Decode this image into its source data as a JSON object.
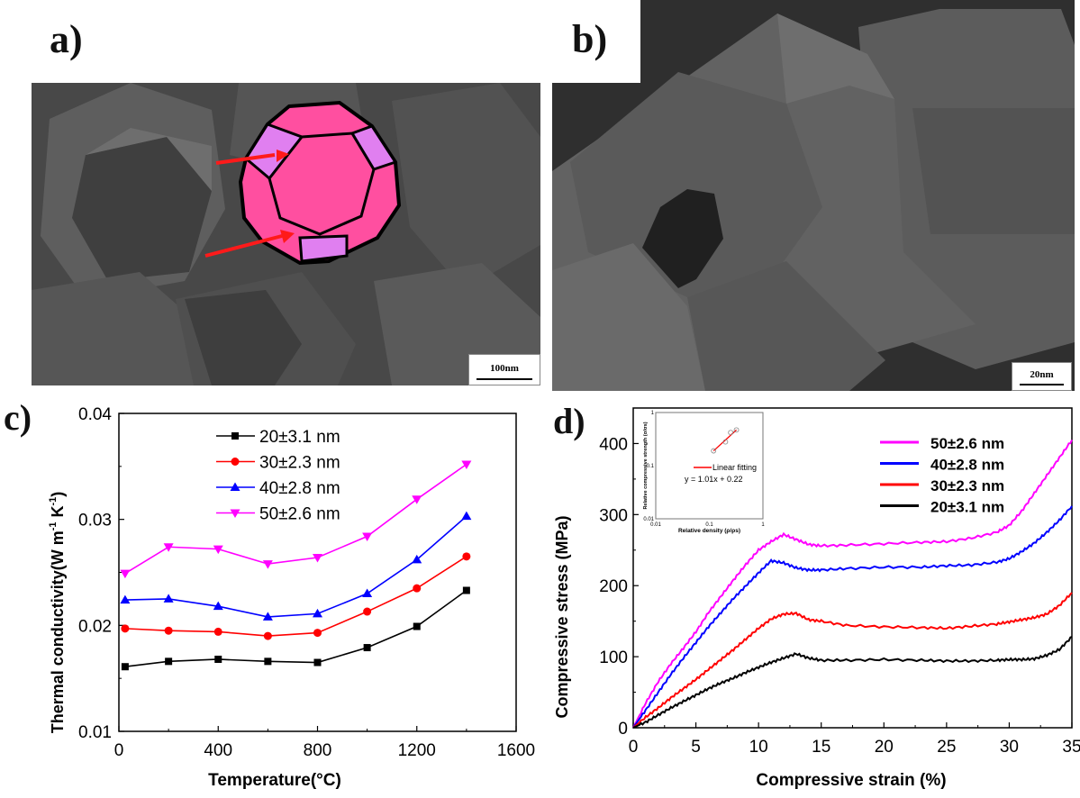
{
  "panels": {
    "a": {
      "label": "a)",
      "scale_bar": "100nm"
    },
    "b": {
      "label": "b)",
      "scale_bar": "20nm"
    },
    "c": {
      "label": "c)"
    },
    "d": {
      "label": "d)"
    }
  },
  "colors": {
    "black": "#000000",
    "red": "#ff0000",
    "blue": "#0000ff",
    "magenta": "#ff00ff",
    "sem_bg": "#4a4a4a",
    "crystal_pink": "#ff4fa0",
    "crystal_lilac": "#e07ff0"
  },
  "chart_data": [
    {
      "type": "line",
      "title": "",
      "xlabel": "Temperature(°C)",
      "ylabel": "Thermal conductivity(W m-1 K-1)",
      "ylabel_parts": {
        "main": "Thermal conductivity(W m",
        "sup1": "-1",
        "mid": " K",
        "sup2": "-1",
        "end": ")"
      },
      "xlim": [
        0,
        1600
      ],
      "ylim": [
        0.01,
        0.04
      ],
      "xticks": [
        "0",
        "400",
        "800",
        "1200",
        "1600"
      ],
      "yticks": [
        "0.01",
        "0.02",
        "0.03",
        "0.04"
      ],
      "legend_position": "top-center",
      "x": [
        25,
        200,
        400,
        600,
        800,
        1000,
        1200,
        1400
      ],
      "series": [
        {
          "name": "20±3.1 nm",
          "color": "#000000",
          "marker": "square",
          "values": [
            0.0161,
            0.0166,
            0.0168,
            0.0166,
            0.0165,
            0.0179,
            0.0199,
            0.0233
          ]
        },
        {
          "name": "30±2.3 nm",
          "color": "#ff0000",
          "marker": "circle",
          "values": [
            0.0197,
            0.0195,
            0.0194,
            0.019,
            0.0193,
            0.0213,
            0.0235,
            0.0265
          ]
        },
        {
          "name": "40±2.8 nm",
          "color": "#0000ff",
          "marker": "triangle-up",
          "values": [
            0.0224,
            0.0225,
            0.0218,
            0.0208,
            0.0211,
            0.023,
            0.0262,
            0.0303
          ]
        },
        {
          "name": "50±2.6 nm",
          "color": "#ff00ff",
          "marker": "triangle-down",
          "values": [
            0.0249,
            0.0274,
            0.0272,
            0.0258,
            0.0264,
            0.0284,
            0.0319,
            0.0352
          ]
        }
      ]
    },
    {
      "type": "line",
      "title": "",
      "xlabel": "Compressive strain (%)",
      "ylabel": "Compressive stress (MPa)",
      "xlim": [
        0,
        35
      ],
      "ylim": [
        0,
        450
      ],
      "xticks": [
        "0",
        "5",
        "10",
        "15",
        "20",
        "25",
        "30",
        "35"
      ],
      "yticks": [
        "0",
        "100",
        "200",
        "300",
        "400"
      ],
      "legend_position": "top-right",
      "x": [
        0,
        1,
        2,
        3,
        4,
        5,
        6,
        7,
        8,
        9,
        10,
        11,
        12,
        13,
        14,
        15,
        17,
        20,
        23,
        25,
        27,
        29,
        30,
        31,
        32,
        33,
        34,
        35
      ],
      "series": [
        {
          "name": "50±2.6 nm",
          "color": "#ff00ff",
          "values": [
            0,
            35,
            65,
            90,
            112,
            135,
            162,
            185,
            208,
            230,
            250,
            262,
            272,
            265,
            258,
            256,
            257,
            259,
            261,
            262,
            267,
            275,
            285,
            305,
            330,
            355,
            380,
            405
          ]
        },
        {
          "name": "40±2.8 nm",
          "color": "#0000ff",
          "values": [
            0,
            25,
            50,
            75,
            98,
            120,
            142,
            162,
            182,
            200,
            218,
            235,
            232,
            225,
            222,
            222,
            224,
            226,
            226,
            228,
            229,
            233,
            238,
            248,
            260,
            275,
            292,
            312
          ]
        },
        {
          "name": "30±2.3 nm",
          "color": "#ff0000",
          "values": [
            0,
            15,
            28,
            42,
            55,
            68,
            82,
            96,
            110,
            125,
            140,
            153,
            160,
            161,
            152,
            150,
            144,
            142,
            141,
            140,
            143,
            146,
            149,
            152,
            155,
            160,
            172,
            190
          ]
        },
        {
          "name": "20±3.1 nm",
          "color": "#000000",
          "values": [
            0,
            8,
            18,
            28,
            37,
            46,
            55,
            63,
            70,
            78,
            85,
            92,
            98,
            104,
            98,
            95,
            95,
            96,
            95,
            94,
            94,
            95,
            96,
            96,
            97,
            102,
            110,
            128
          ]
        }
      ],
      "inset": {
        "type": "scatter",
        "xlabel": "Relative density (ρ/ρs)",
        "ylabel": "Relative compressive strength (σ/σs)",
        "xticks": [
          "0.01",
          "0.1",
          "1"
        ],
        "yticks": [
          "0.01",
          "0.1",
          "1"
        ],
        "xlim": [
          0.01,
          1
        ],
        "ylim": [
          0.01,
          1
        ],
        "scale": "log-log",
        "points": {
          "x": [
            0.12,
            0.2,
            0.25,
            0.32
          ],
          "y": [
            0.19,
            0.28,
            0.42,
            0.47
          ]
        },
        "fit_label": "Linear fitting",
        "fit_equation": "y = 1.01x + 0.22",
        "fit_color": "#ff0000"
      }
    }
  ]
}
